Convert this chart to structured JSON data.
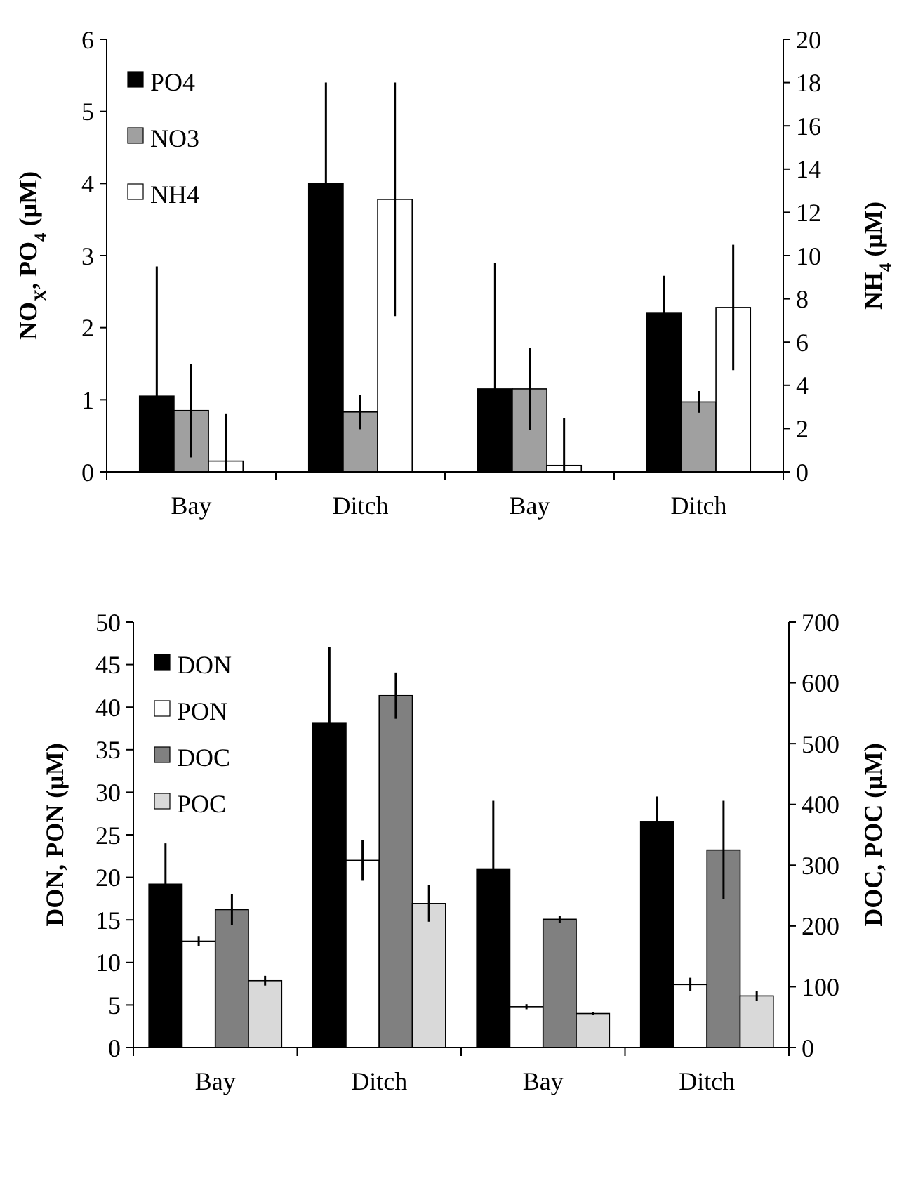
{
  "chart_data": [
    {
      "type": "bar",
      "categories": [
        "Bay",
        "Ditch",
        "Bay",
        "Ditch"
      ],
      "ylabel": "NO$_{X}$, PO$_{4}$ (μM)",
      "y2label": "NH$_{4}$ (μM)",
      "ylim": [
        0,
        6
      ],
      "yticks": [
        0,
        1,
        2,
        3,
        4,
        5,
        6
      ],
      "y2lim": [
        0,
        20
      ],
      "y2ticks": [
        0,
        2,
        4,
        6,
        8,
        10,
        12,
        14,
        16,
        18,
        20
      ],
      "grid": false,
      "legend": "top left",
      "series": [
        {
          "name": "PO4",
          "color": "#000000",
          "values": [
            1.05,
            4.0,
            1.15,
            2.2
          ],
          "errors": [
            [
              0,
              2.85
            ],
            1.4,
            [
              0,
              2.9
            ],
            0.52
          ]
        },
        {
          "name": "NO3",
          "color": "#a0a0a0",
          "values": [
            0.85,
            0.83,
            1.15,
            0.97
          ],
          "errors": [
            0.65,
            0.24,
            0.57,
            0.15
          ]
        },
        {
          "name": "NH4",
          "color": "#ffffff",
          "axis": "y2",
          "values": [
            0.5,
            12.6,
            0.3,
            7.6
          ],
          "errors": [
            [
              0,
              2.7
            ],
            5.4,
            [
              0,
              2.5
            ],
            2.9
          ]
        }
      ]
    },
    {
      "type": "bar",
      "categories": [
        "Bay",
        "Ditch",
        "Bay",
        "Ditch"
      ],
      "ylabel": "DON, PON (μM)",
      "y2label": "DOC, POC (μM)",
      "ylim": [
        0,
        50
      ],
      "yticks": [
        0,
        5,
        10,
        15,
        20,
        25,
        30,
        35,
        40,
        45,
        50
      ],
      "y2lim": [
        0,
        700
      ],
      "y2ticks": [
        0,
        100,
        200,
        300,
        400,
        500,
        600,
        700
      ],
      "grid": false,
      "legend": "top left",
      "series": [
        {
          "name": "DON",
          "color": "#000000",
          "values": [
            19.2,
            38.1,
            21.0,
            26.5
          ],
          "errors": [
            4.8,
            9,
            8,
            3
          ]
        },
        {
          "name": "PON",
          "color": "#ffffff",
          "values": [
            12.5,
            22,
            4.8,
            7.4
          ],
          "errors": [
            0.6,
            2.4,
            0.3,
            0.8
          ]
        },
        {
          "name": "DOC",
          "color": "#808080",
          "axis": "y2",
          "values": [
            227,
            579,
            211,
            325
          ],
          "errors": [
            25,
            38,
            6,
            81
          ]
        },
        {
          "name": "POC",
          "color": "#d9d9d9",
          "axis": "y2",
          "values": [
            110,
            237,
            56,
            85
          ],
          "errors": [
            8,
            30,
            2,
            8
          ]
        }
      ]
    }
  ]
}
